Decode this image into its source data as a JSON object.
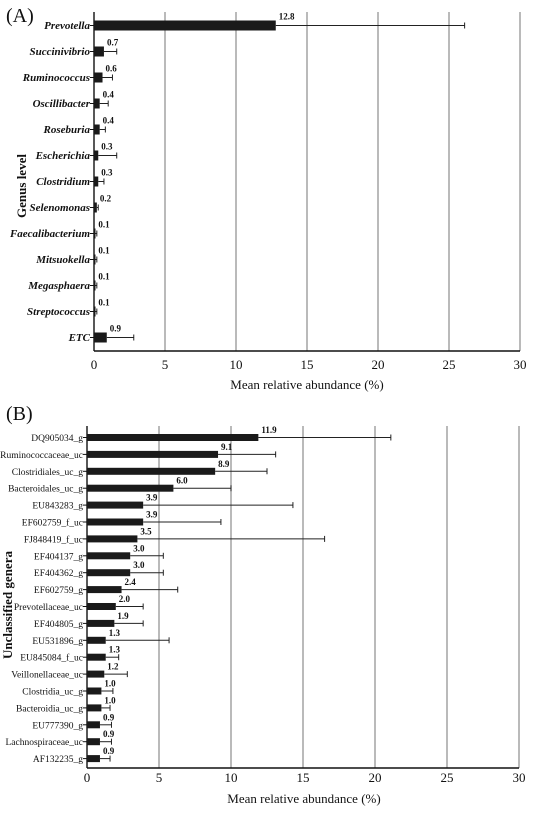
{
  "panels": [
    {
      "label": "(A)",
      "ylabel": "Genus level",
      "xlabel": "Mean relative abundance (%)",
      "italic": true
    },
    {
      "label": "(B)",
      "ylabel": "Unclassified genera",
      "xlabel": "Mean relative abundance (%)",
      "italic": false
    }
  ],
  "chart_data": [
    {
      "type": "bar",
      "orientation": "horizontal",
      "title": "(A)",
      "ylabel": "Genus level",
      "xlabel": "Mean relative abundance (%)",
      "xlim": [
        0,
        30
      ],
      "xticks": [
        0,
        5,
        10,
        15,
        20,
        25,
        30
      ],
      "grid": "vertical",
      "bar_color": "#1a1a1a",
      "categories": [
        "Prevotella",
        "Succinivibrio",
        "Ruminococcus",
        "Oscillibacter",
        "Roseburia",
        "Escherichia",
        "Clostridium",
        "Selenomonas",
        "Faecalibacterium",
        "Mitsuokella",
        "Megasphaera",
        "Streptococcus",
        "ETC"
      ],
      "values": [
        12.8,
        0.7,
        0.6,
        0.4,
        0.4,
        0.3,
        0.3,
        0.2,
        0.1,
        0.1,
        0.1,
        0.1,
        0.9
      ],
      "labels": [
        "12.8",
        "0.7",
        "0.6",
        "0.4",
        "0.4",
        "0.3",
        "0.3",
        "0.2",
        "0.1",
        "0.1",
        "0.1",
        "0.1",
        "0.9"
      ],
      "error_upper": [
        26.1,
        1.6,
        1.3,
        1.0,
        0.8,
        1.6,
        0.7,
        0.3,
        0.2,
        0.2,
        0.2,
        0.2,
        2.8
      ]
    },
    {
      "type": "bar",
      "orientation": "horizontal",
      "title": "(B)",
      "ylabel": "Unclassified genera",
      "xlabel": "Mean relative abundance (%)",
      "xlim": [
        0,
        30
      ],
      "xticks": [
        0,
        5,
        10,
        15,
        20,
        25,
        30
      ],
      "grid": "vertical",
      "bar_color": "#1a1a1a",
      "categories": [
        "DQ905034_g",
        "Ruminococcaceae_uc",
        "Clostridiales_uc_g",
        "Bacteroidales_uc_g",
        "EU843283_g",
        "EF602759_f_uc",
        "FJ848419_f_uc",
        "EF404137_g",
        "EF404362_g",
        "EF602759_g",
        "Prevotellaceae_uc",
        "EF404805_g",
        "EU531896_g",
        "EU845084_f_uc",
        "Veillonellaceae_uc",
        "Clostridia_uc_g",
        "Bacteroidia_uc_g",
        "EU777390_g",
        "Lachnospiraceae_uc",
        "AF132235_g"
      ],
      "values": [
        11.9,
        9.1,
        8.9,
        6.0,
        3.9,
        3.9,
        3.5,
        3.0,
        3.0,
        2.4,
        2.0,
        1.9,
        1.3,
        1.3,
        1.2,
        1.0,
        1.0,
        0.9,
        0.9,
        0.9
      ],
      "labels": [
        "11.9",
        "9.1",
        "8.9",
        "6.0",
        "3.9",
        "3.9",
        "3.5",
        "3.0",
        "3.0",
        "2.4",
        "2.0",
        "1.9",
        "1.3",
        "1.3",
        "1.2",
        "1.0",
        "1.0",
        "0.9",
        "0.9",
        "0.9"
      ],
      "error_upper": [
        21.1,
        13.1,
        12.5,
        10.0,
        14.3,
        9.3,
        16.5,
        5.3,
        5.3,
        6.3,
        3.9,
        3.9,
        5.7,
        2.2,
        2.8,
        1.8,
        1.6,
        1.7,
        1.7,
        1.6
      ]
    }
  ]
}
